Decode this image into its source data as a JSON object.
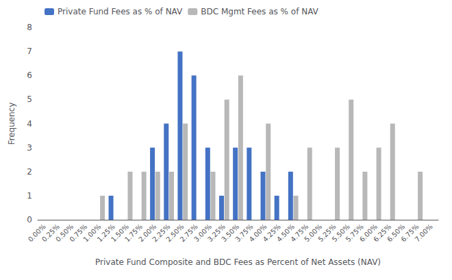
{
  "chart_data": {
    "type": "bar",
    "categories": [
      "0.00%",
      "0.25%",
      "0.50%",
      "0.75%",
      "1.00%",
      "1.25%",
      "1.50%",
      "1.75%",
      "2.00%",
      "2.25%",
      "2.50%",
      "2.75%",
      "3.00%",
      "3.25%",
      "3.50%",
      "3.75%",
      "4.00%",
      "4.25%",
      "4.50%",
      "4.75%",
      "5.00%",
      "5.25%",
      "5.50%",
      "5.75%",
      "6.00%",
      "6.25%",
      "6.50%",
      "6.75%",
      "7.00%"
    ],
    "series": [
      {
        "name": "Private Fund Fees as % of NAV",
        "color": "#4472c4",
        "values": [
          0,
          0,
          0,
          0,
          0,
          1,
          0,
          0,
          3,
          4,
          7,
          6,
          3,
          1,
          3,
          3,
          2,
          1,
          2,
          0,
          0,
          0,
          0,
          0,
          0,
          0,
          0,
          0,
          0
        ]
      },
      {
        "name": "BDC Mgmt Fees as % of NAV",
        "color": "#b8b8b8",
        "values": [
          0,
          0,
          0,
          0,
          1,
          0,
          2,
          2,
          2,
          2,
          4,
          0,
          2,
          5,
          6,
          0,
          4,
          0,
          1,
          3,
          0,
          3,
          5,
          2,
          3,
          4,
          0,
          2,
          0
        ]
      }
    ],
    "xlabel": "Private Fund Composite and BDC Fees as Percent of Net Assets (NAV)",
    "ylabel": "Frequency",
    "ylim": [
      0,
      8
    ],
    "yticks": [
      0,
      1,
      2,
      3,
      4,
      5,
      6,
      7,
      8
    ],
    "grid": false,
    "legend": "upper left"
  }
}
